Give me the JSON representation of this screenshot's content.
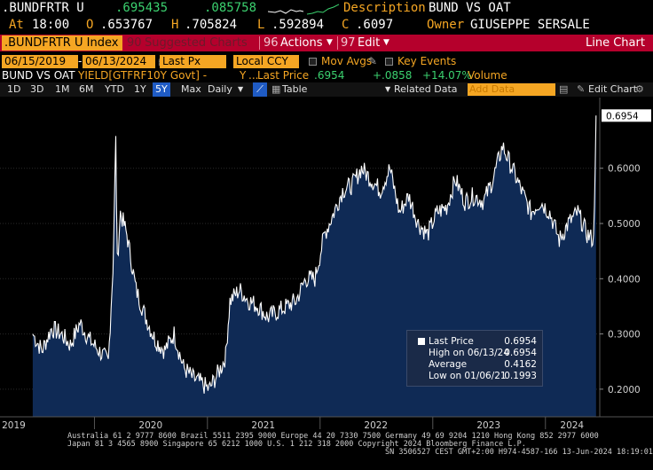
{
  "ticker": {
    "security": ".BUNDFRTR U",
    "last": ".695435",
    "change": ".085758",
    "desc_label": "Description",
    "desc_value": "BUND VS OAT",
    "at_label": "At",
    "time": "18:00",
    "open_label": "O",
    "open": ".653767",
    "high_label": "H",
    "high": ".705824",
    "low_label": "L",
    "low": ".592894",
    "close_label": "C",
    "close": ".6097",
    "owner_label": "Owner",
    "owner": "GIUSEPPE SERSALE"
  },
  "menubar": {
    "security_field": ".BUNDFRTR U Index",
    "suggested_code": "90",
    "suggested_label": "Suggested Charts",
    "actions_code": "96",
    "actions_label": "Actions",
    "edit_code": "97",
    "edit_label": "Edit",
    "view_title": "Line Chart"
  },
  "controls": {
    "start_date": "06/15/2019",
    "end_date": "06/13/2024",
    "price_field": "Last Px",
    "currency": "Local CCY",
    "mov_avgs": "Mov Avgs",
    "key_events": "Key Events"
  },
  "legend_row": {
    "series1": "BUND VS OAT",
    "series2": "YIELD[GTFRF10Y Govt] -",
    "y_label": "Y",
    "last_price_label": "Last Price",
    "last_price": ".6954",
    "change": "+.0858",
    "change_pct": "+14.07%",
    "volume_label": "Volume"
  },
  "toolbar": {
    "periods": [
      "1D",
      "3D",
      "1M",
      "6M",
      "YTD",
      "1Y",
      "5Y",
      "Max"
    ],
    "selected_period": "5Y",
    "frequency": "Daily",
    "table_label": "Table",
    "related_data": "Related Data",
    "add_data_placeholder": "Add Data",
    "edit_chart": "Edit Chart"
  },
  "colors": {
    "amber": "#f5a623",
    "menu_red": "#b5002c",
    "area_fill": "#0f2a55",
    "line": "#ffffff",
    "selected_blue": "#1f5bc4"
  },
  "chart_data": {
    "type": "area",
    "ylim": [
      0.15,
      0.72
    ],
    "y_ticks": [
      "0.2000",
      "0.3000",
      "0.4000",
      "0.5000",
      "0.6000"
    ],
    "x_ticks": [
      "2019",
      "2020",
      "2021",
      "2022",
      "2023",
      "2024"
    ],
    "last_value_label": "0.6954",
    "series": [
      {
        "name": "BUND VS OAT",
        "x": [
          "2019-06-15",
          "2019-07-15",
          "2019-08-15",
          "2019-09-15",
          "2019-10-15",
          "2019-11-15",
          "2019-12-15",
          "2020-01-15",
          "2020-02-15",
          "2020-03-01",
          "2020-03-10",
          "2020-03-15",
          "2020-03-25",
          "2020-04-15",
          "2020-05-15",
          "2020-06-15",
          "2020-07-15",
          "2020-08-15",
          "2020-09-15",
          "2020-10-15",
          "2020-11-15",
          "2020-12-15",
          "2021-01-06",
          "2021-02-15",
          "2021-03-01",
          "2021-03-15",
          "2021-04-15",
          "2021-05-15",
          "2021-06-15",
          "2021-07-15",
          "2021-08-15",
          "2021-09-15",
          "2021-10-15",
          "2021-11-15",
          "2021-12-15",
          "2022-01-15",
          "2022-02-15",
          "2022-03-15",
          "2022-04-15",
          "2022-05-15",
          "2022-06-15",
          "2022-07-15",
          "2022-08-15",
          "2022-09-15",
          "2022-10-15",
          "2022-11-15",
          "2022-12-15",
          "2023-01-15",
          "2023-02-15",
          "2023-03-15",
          "2023-04-15",
          "2023-05-15",
          "2023-06-15",
          "2023-07-15",
          "2023-08-15",
          "2023-09-15",
          "2023-10-15",
          "2023-11-15",
          "2023-12-15",
          "2024-01-15",
          "2024-02-15",
          "2024-03-15",
          "2024-04-15",
          "2024-05-15",
          "2024-06-05",
          "2024-06-13"
        ],
        "values": [
          0.3,
          0.27,
          0.31,
          0.3,
          0.28,
          0.32,
          0.29,
          0.27,
          0.25,
          0.42,
          0.65,
          0.43,
          0.52,
          0.48,
          0.38,
          0.33,
          0.29,
          0.27,
          0.3,
          0.24,
          0.22,
          0.21,
          0.1993,
          0.24,
          0.26,
          0.36,
          0.38,
          0.36,
          0.35,
          0.33,
          0.34,
          0.35,
          0.36,
          0.4,
          0.4,
          0.48,
          0.52,
          0.56,
          0.57,
          0.6,
          0.58,
          0.56,
          0.6,
          0.52,
          0.55,
          0.5,
          0.48,
          0.52,
          0.53,
          0.58,
          0.54,
          0.55,
          0.54,
          0.58,
          0.64,
          0.6,
          0.56,
          0.52,
          0.54,
          0.52,
          0.47,
          0.5,
          0.52,
          0.48,
          0.47,
          0.6954
        ]
      }
    ],
    "legend": [
      {
        "label": "Last Price",
        "value": "0.6954"
      },
      {
        "label": "High on 06/13/24",
        "value": "0.6954"
      },
      {
        "label": "Average",
        "value": "0.4162"
      },
      {
        "label": "Low on 01/06/21",
        "value": "0.1993"
      }
    ]
  },
  "footer": {
    "line1": "Australia 61 2 9777 8600 Brazil 5511 2395 9000 Europe 44 20 7330 7500 Germany 49 69 9204 1210 Hong Kong 852 2977 6000",
    "line2": "Japan 81 3 4565 8900        Singapore 65 6212 1000        U.S. 1 212 318 2000        Copyright 2024 Bloomberg Finance L.P.",
    "line3": "SN 3506527 CEST GMT+2:00 H974-4587-166 13-Jun-2024 18:19:01"
  }
}
